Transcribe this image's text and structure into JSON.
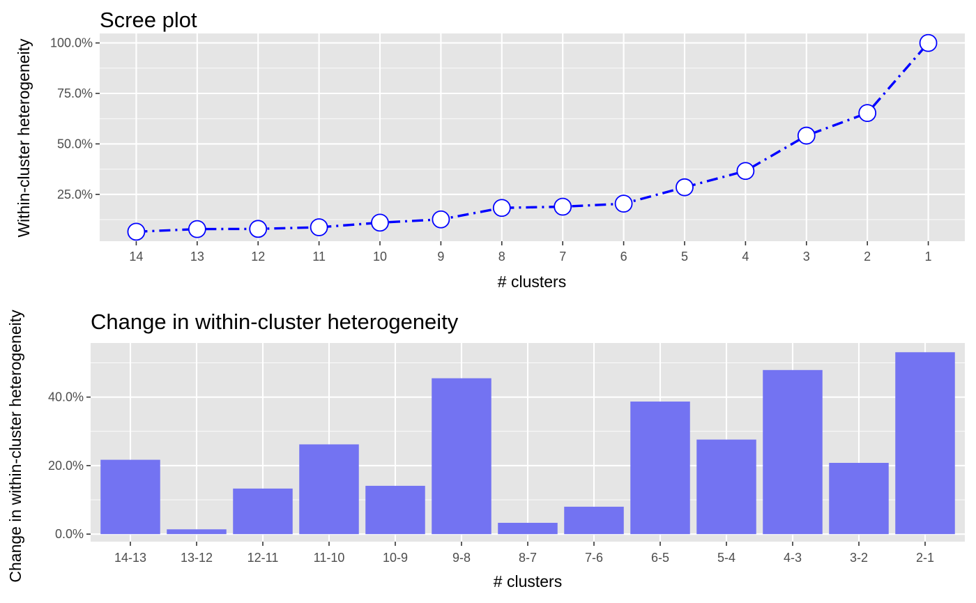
{
  "chart_data": [
    {
      "type": "line",
      "title": "Scree plot",
      "xlabel": "# clusters",
      "ylabel": "Within-cluster heterogeneity",
      "categories": [
        "14",
        "13",
        "12",
        "11",
        "10",
        "9",
        "8",
        "7",
        "6",
        "5",
        "4",
        "3",
        "2",
        "1"
      ],
      "values": [
        6.5,
        7.8,
        7.9,
        8.7,
        11.0,
        12.6,
        18.3,
        18.9,
        20.4,
        28.5,
        36.6,
        54.1,
        65.3,
        100.0
      ],
      "ylim": [
        0,
        100
      ],
      "yticks": [
        25,
        50,
        75,
        100
      ],
      "ytick_labels": [
        "25.0%",
        "50.0%",
        "75.0%",
        "100.0%"
      ],
      "line_color": "#0000ff",
      "line_style": "dash-dot",
      "marker_fill": "#ffffff",
      "marker_stroke": "#0000ff",
      "panel_bg": "#e5e5e5",
      "grid": true
    },
    {
      "type": "bar",
      "title": "Change in within-cluster heterogeneity",
      "xlabel": "# clusters",
      "ylabel": "Change in within-cluster heterogeneity",
      "categories": [
        "14-13",
        "13-12",
        "12-11",
        "11-10",
        "10-9",
        "9-8",
        "8-7",
        "7-6",
        "6-5",
        "5-4",
        "4-3",
        "3-2",
        "2-1"
      ],
      "values": [
        21.7,
        1.4,
        13.3,
        26.2,
        14.1,
        45.5,
        3.3,
        8.0,
        38.7,
        27.6,
        47.9,
        20.8,
        53.1
      ],
      "ylim": [
        0,
        55
      ],
      "yticks": [
        0,
        20,
        40
      ],
      "ytick_labels": [
        "0.0%",
        "20.0%",
        "40.0%"
      ],
      "bar_color": "#7373f2",
      "panel_bg": "#e5e5e5",
      "grid": true
    }
  ]
}
